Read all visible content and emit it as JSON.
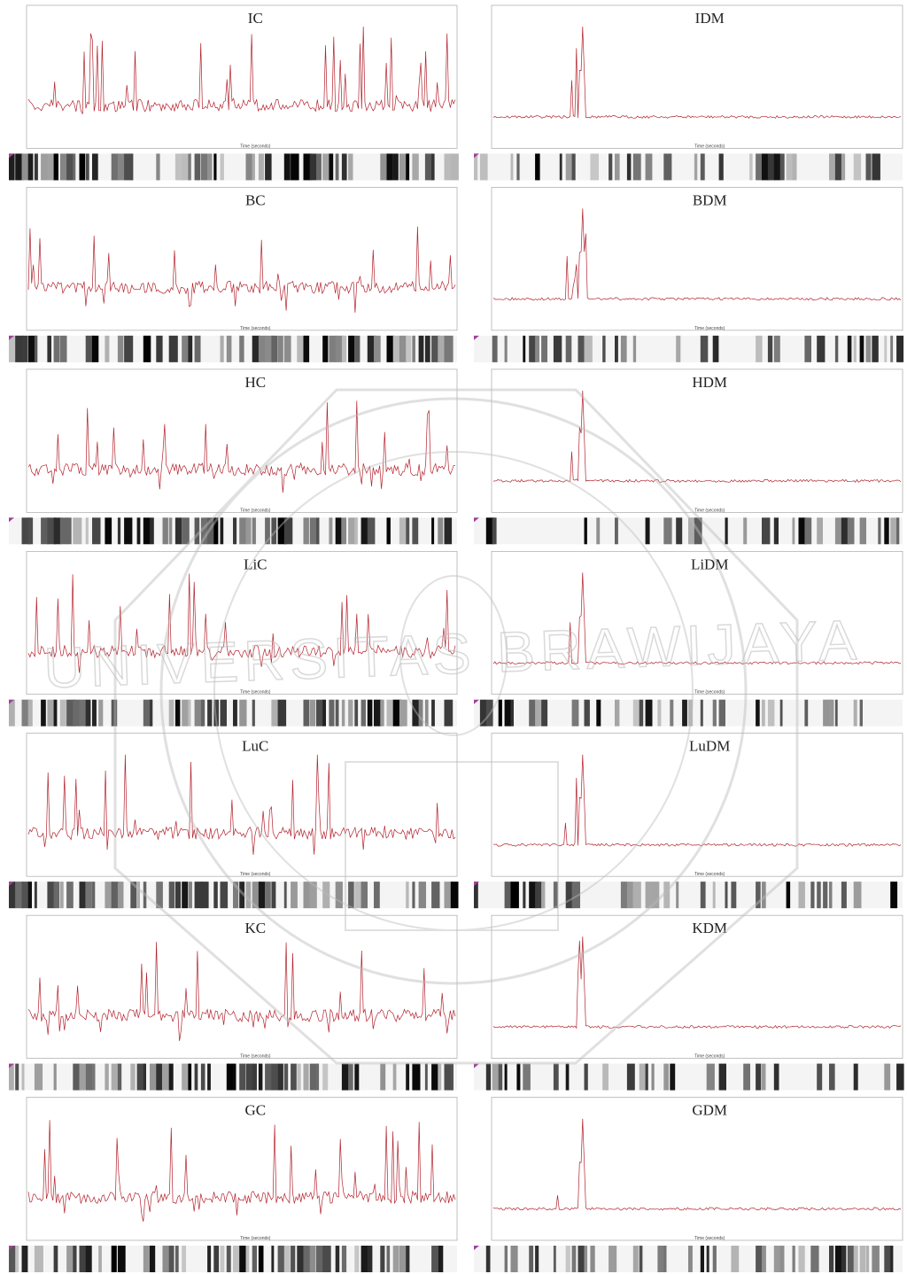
{
  "panels": [
    {
      "title": "IC"
    },
    {
      "title": "IDM"
    },
    {
      "title": "BC"
    },
    {
      "title": "BDM"
    },
    {
      "title": "HC"
    },
    {
      "title": "HDM"
    },
    {
      "title": "LiC"
    },
    {
      "title": "LiDM"
    },
    {
      "title": "LuC"
    },
    {
      "title": "LuDM"
    },
    {
      "title": "KC"
    },
    {
      "title": "KDM"
    },
    {
      "title": "GC"
    },
    {
      "title": "GDM"
    }
  ],
  "x_label": "Time (seconds)",
  "watermark": "UNIVERSITAS BRAWIJAYA"
}
